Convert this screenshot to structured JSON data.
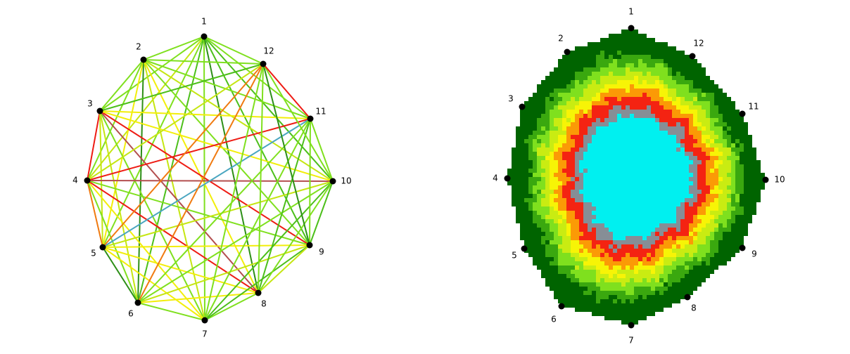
{
  "graph": {
    "nodes": [
      {
        "id": "1"
      },
      {
        "id": "2"
      },
      {
        "id": "3"
      },
      {
        "id": "4"
      },
      {
        "id": "5"
      },
      {
        "id": "6"
      },
      {
        "id": "7"
      },
      {
        "id": "8"
      },
      {
        "id": "9"
      },
      {
        "id": "10"
      },
      {
        "id": "11"
      },
      {
        "id": "12"
      }
    ],
    "edge_colors": {
      "light_green": "#7fe01e",
      "mid_green": "#4cbf1a",
      "dark_green": "#2d8f17",
      "yellow": "#f2ee0a",
      "yellow_green": "#c5e612",
      "orange": "#f07a10",
      "red": "#ee1c14",
      "brown": "#b34e4e",
      "teal": "#4aa6c0"
    },
    "edges": [
      [
        "1",
        "2",
        "light_green"
      ],
      [
        "1",
        "3",
        "light_green"
      ],
      [
        "1",
        "4",
        "yellow_green"
      ],
      [
        "1",
        "5",
        "light_green"
      ],
      [
        "1",
        "6",
        "mid_green"
      ],
      [
        "1",
        "7",
        "light_green"
      ],
      [
        "1",
        "8",
        "dark_green"
      ],
      [
        "1",
        "9",
        "mid_green"
      ],
      [
        "1",
        "10",
        "mid_green"
      ],
      [
        "1",
        "11",
        "light_green"
      ],
      [
        "1",
        "12",
        "light_green"
      ],
      [
        "2",
        "3",
        "light_green"
      ],
      [
        "2",
        "4",
        "light_green"
      ],
      [
        "2",
        "5",
        "yellow"
      ],
      [
        "2",
        "6",
        "dark_green"
      ],
      [
        "2",
        "7",
        "yellow_green"
      ],
      [
        "2",
        "8",
        "yellow"
      ],
      [
        "2",
        "9",
        "light_green"
      ],
      [
        "2",
        "10",
        "yellow_green"
      ],
      [
        "2",
        "11",
        "light_green"
      ],
      [
        "2",
        "12",
        "light_green"
      ],
      [
        "3",
        "4",
        "red"
      ],
      [
        "3",
        "5",
        "yellow_green"
      ],
      [
        "3",
        "6",
        "yellow_green"
      ],
      [
        "3",
        "7",
        "light_green"
      ],
      [
        "3",
        "8",
        "brown"
      ],
      [
        "3",
        "9",
        "red"
      ],
      [
        "3",
        "10",
        "yellow"
      ],
      [
        "3",
        "11",
        "yellow"
      ],
      [
        "3",
        "12",
        "mid_green"
      ],
      [
        "4",
        "5",
        "orange"
      ],
      [
        "4",
        "6",
        "light_green"
      ],
      [
        "4",
        "7",
        "yellow"
      ],
      [
        "4",
        "8",
        "red"
      ],
      [
        "4",
        "9",
        "light_green"
      ],
      [
        "4",
        "10",
        "brown"
      ],
      [
        "4",
        "11",
        "red"
      ],
      [
        "4",
        "12",
        "yellow_green"
      ],
      [
        "5",
        "6",
        "dark_green"
      ],
      [
        "5",
        "7",
        "yellow"
      ],
      [
        "5",
        "8",
        "yellow"
      ],
      [
        "5",
        "9",
        "yellow"
      ],
      [
        "5",
        "10",
        "yellow_green"
      ],
      [
        "5",
        "11",
        "teal"
      ],
      [
        "5",
        "12",
        "orange"
      ],
      [
        "6",
        "7",
        "light_green"
      ],
      [
        "6",
        "8",
        "yellow"
      ],
      [
        "6",
        "9",
        "yellow_green"
      ],
      [
        "6",
        "10",
        "light_green"
      ],
      [
        "6",
        "11",
        "light_green"
      ],
      [
        "6",
        "12",
        "orange"
      ],
      [
        "7",
        "8",
        "light_green"
      ],
      [
        "7",
        "9",
        "mid_green"
      ],
      [
        "7",
        "10",
        "mid_green"
      ],
      [
        "7",
        "11",
        "light_green"
      ],
      [
        "7",
        "12",
        "light_green"
      ],
      [
        "8",
        "9",
        "yellow_green"
      ],
      [
        "8",
        "10",
        "light_green"
      ],
      [
        "8",
        "11",
        "mid_green"
      ],
      [
        "8",
        "12",
        "light_green"
      ],
      [
        "9",
        "10",
        "mid_green"
      ],
      [
        "9",
        "11",
        "light_green"
      ],
      [
        "9",
        "12",
        "dark_green"
      ],
      [
        "10",
        "11",
        "light_green"
      ],
      [
        "10",
        "12",
        "light_green"
      ],
      [
        "11",
        "12",
        "red"
      ]
    ]
  },
  "heatmap": {
    "nodes": [
      {
        "id": "1"
      },
      {
        "id": "2"
      },
      {
        "id": "3"
      },
      {
        "id": "4"
      },
      {
        "id": "5"
      },
      {
        "id": "6"
      },
      {
        "id": "7"
      },
      {
        "id": "8"
      },
      {
        "id": "9"
      },
      {
        "id": "10"
      },
      {
        "id": "11"
      },
      {
        "id": "12"
      }
    ],
    "bands": [
      {
        "level": "outer",
        "color": "#006400"
      },
      {
        "level": "green",
        "color": "#3aa80f"
      },
      {
        "level": "light_green",
        "color": "#7fe01e"
      },
      {
        "level": "yellow_green",
        "color": "#c9ec12"
      },
      {
        "level": "yellow",
        "color": "#f7f406"
      },
      {
        "level": "orange",
        "color": "#fb9a06"
      },
      {
        "level": "red",
        "color": "#f42312"
      },
      {
        "level": "grey",
        "color": "#868e96"
      },
      {
        "level": "cyan",
        "color": "#00f0f0"
      }
    ]
  }
}
